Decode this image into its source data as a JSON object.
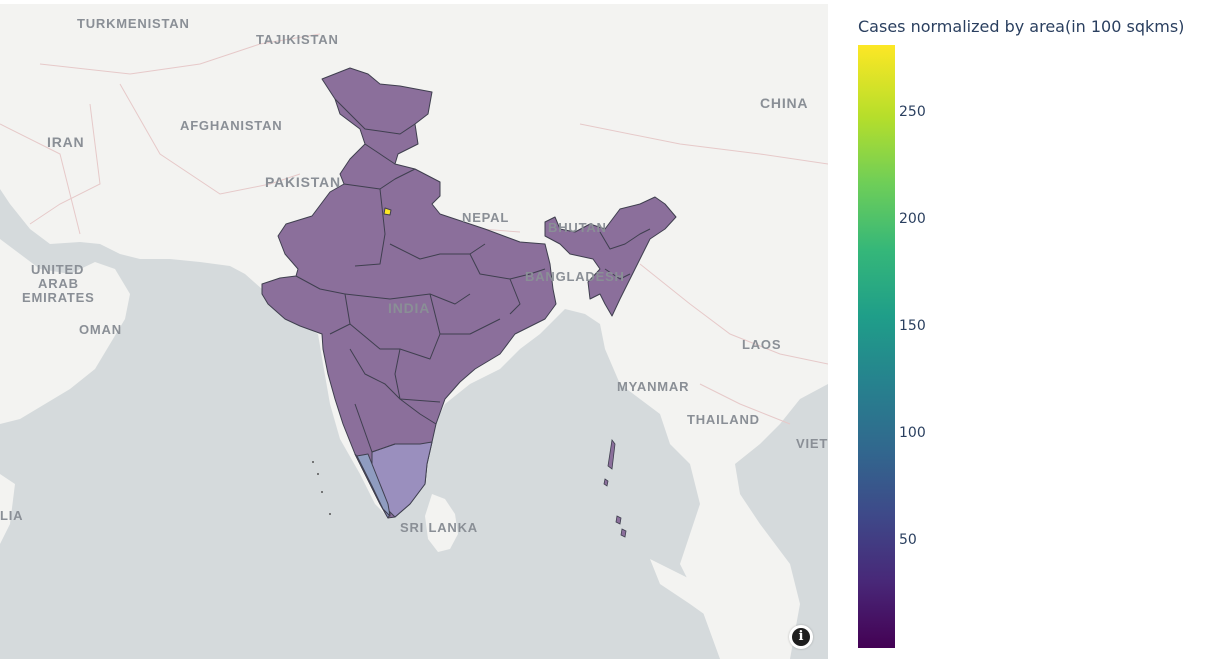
{
  "colorbar": {
    "title": "Cases normalized by area(in 100 sqkms)",
    "ticks": [
      {
        "label": "250",
        "value": 250
      },
      {
        "label": "200",
        "value": 200
      },
      {
        "label": "150",
        "value": 150
      },
      {
        "label": "100",
        "value": 100
      },
      {
        "label": "50",
        "value": 50
      }
    ],
    "range": [
      0,
      282
    ],
    "colorscale": "Viridis"
  },
  "map": {
    "labels": {
      "turkmenistan": "TURKMENISTAN",
      "tajikistan": "TAJIKISTAN",
      "iran": "IRAN",
      "afghanistan": "AFGHANISTAN",
      "pakistan": "PAKISTAN",
      "china": "CHINA",
      "nepal": "NEPAL",
      "bhutan": "BHUTAN",
      "bangladesh": "BANGLADESH",
      "india": "INDIA",
      "uae_1": "UNITED",
      "uae_2": "ARAB",
      "uae_3": "EMIRATES",
      "oman": "OMAN",
      "laos": "LAOS",
      "myanmar": "MYANMAR",
      "thailand": "THAILAND",
      "vietnam": "VIET",
      "somalia": "LIA",
      "sri_lanka": "SRI LANKA"
    },
    "land_color": "#f2f2f0",
    "sea_color": "#d5dadc",
    "region_color": "#8b6f9b",
    "region_highlight_color": "#fde725",
    "region_south_color": "#8a8fbe"
  },
  "info_button": {
    "glyph": "i"
  }
}
